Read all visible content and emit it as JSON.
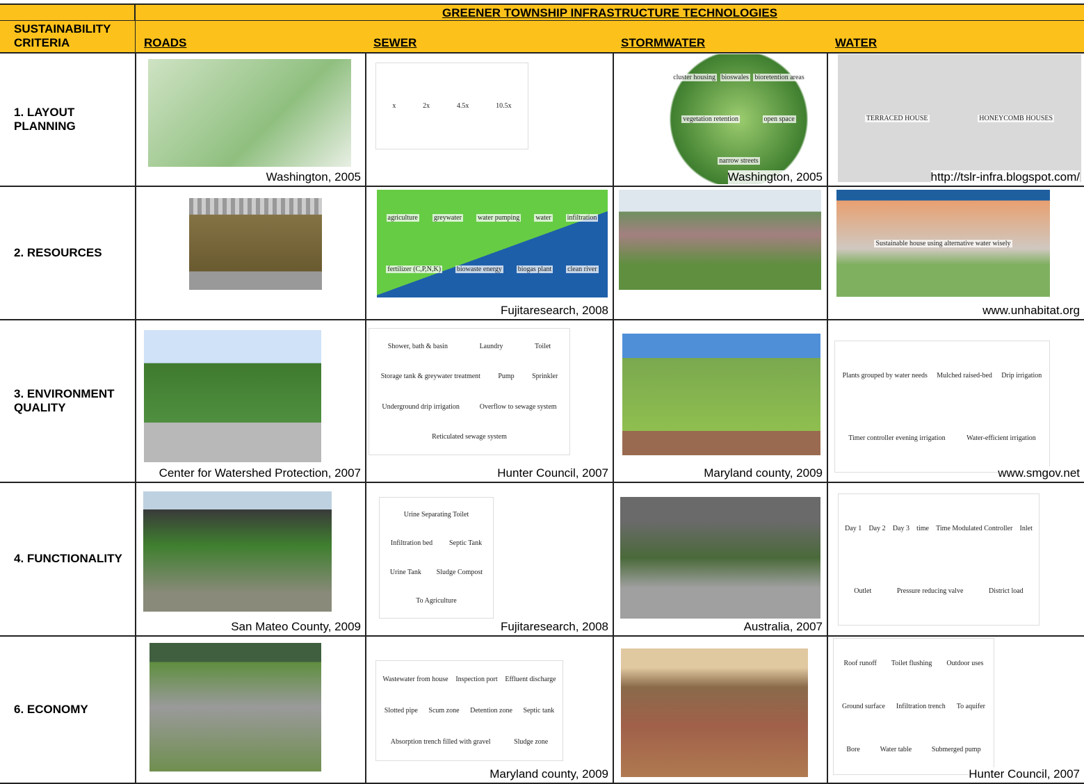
{
  "header": {
    "title": "GREENER TOWNSHIP INFRASTRUCTURE TECHNOLOGIES",
    "criteria_label": "SUSTAINABILITY CRITERIA"
  },
  "columns": [
    "ROADS",
    "SEWER",
    "STORMWATER",
    "WATER"
  ],
  "rows": [
    {
      "criterion": "1.  LAYOUT PLANNING",
      "cells": [
        {
          "caption": "Washington, 2005"
        },
        {
          "labels": [
            "x",
            "2x",
            "4.5x",
            "10.5x"
          ]
        },
        {
          "caption": "Washington, 2005",
          "labels": [
            "cluster housing",
            "bioswales",
            "bioretention areas",
            "vegetation retention",
            "open space",
            "narrow streets"
          ]
        },
        {
          "caption": "http://tslr-infra.blogspot.com/",
          "labels": [
            "TERRACED HOUSE",
            "HONEYCOMB HOUSES"
          ]
        }
      ]
    },
    {
      "criterion": "2.  RESOURCES",
      "cells": [
        {},
        {
          "caption": "Fujitaresearch, 2008",
          "labels": [
            "agriculture",
            "greywater",
            "water pumping",
            "water",
            "infiltration",
            "fertilizer (C,P,N,K)",
            "biowaste energy",
            "biogas plant",
            "clean river"
          ]
        },
        {},
        {
          "caption": "www.unhabitat.org",
          "labels": [
            "Sustainable house using alternative water wisely"
          ]
        }
      ]
    },
    {
      "criterion": "3.  ENVIRONMENT QUALITY",
      "cells": [
        {
          "caption": "Center for Watershed Protection, 2007"
        },
        {
          "caption": "Hunter Council, 2007",
          "labels": [
            "Shower, bath & basin",
            "Laundry",
            "Toilet",
            "Storage tank & greywater treatment",
            "Pump",
            "Sprinkler",
            "Underground drip irrigation",
            "Overflow to sewage system",
            "Reticulated sewage system"
          ]
        },
        {
          "caption": "Maryland county, 2009"
        },
        {
          "caption": "www.smgov.net",
          "labels": [
            "Plants grouped by water needs",
            "Mulched raised-bed",
            "Drip irrigation",
            "Timer controller evening irrigation",
            "Water-efficient irrigation"
          ]
        }
      ]
    },
    {
      "criterion": "4.  FUNCTIONALITY",
      "cells": [
        {
          "caption": "San Mateo County, 2009"
        },
        {
          "caption": "Fujitaresearch, 2008",
          "labels": [
            "Urine Separating Toilet",
            "Infiltration bed",
            "Septic Tank",
            "Urine Tank",
            "Sludge Compost",
            "To Agriculture"
          ]
        },
        {
          "caption": "Australia, 2007"
        },
        {
          "labels": [
            "Day 1",
            "Day 2",
            "Day 3",
            "time",
            "Time Modulated Controller",
            "Inlet",
            "Outlet",
            "Pressure reducing valve",
            "District load"
          ]
        }
      ]
    },
    {
      "criterion": "6.  ECONOMY",
      "cells": [
        {},
        {
          "caption": "Maryland county, 2009",
          "labels": [
            "Wastewater from house",
            "Inspection port",
            "Effluent discharge",
            "Slotted pipe",
            "Scum zone",
            "Detention zone",
            "Septic tank",
            "Absorption trench filled with gravel",
            "Sludge zone"
          ]
        },
        {},
        {
          "caption": "Hunter Council, 2007",
          "labels": [
            "Roof runoff",
            "Toilet flushing",
            "Outdoor uses",
            "Ground surface",
            "Infiltration trench",
            "To aquifer",
            "Bore",
            "Water table",
            "Submerged pump"
          ]
        }
      ]
    }
  ]
}
